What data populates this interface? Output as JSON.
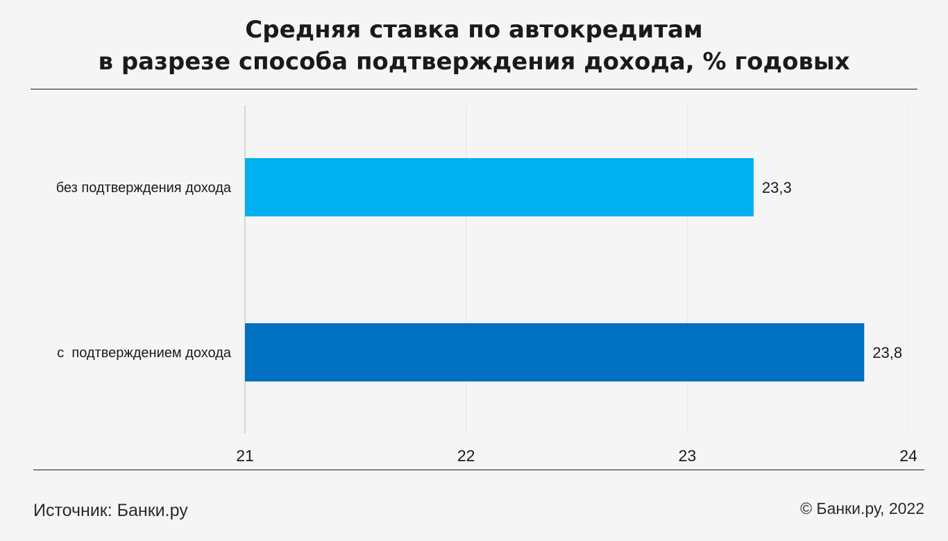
{
  "header": {
    "title_line1": "Средняя ставка по автокредитам",
    "title_line2": "в разрезе способа подтверждения дохода, % годовых"
  },
  "footer": {
    "source": "Источник: Банки.ру",
    "copyright": "© Банки.ру, 2022"
  },
  "chart_data": {
    "type": "bar",
    "orientation": "horizontal",
    "title": "Средняя ставка по автокредитам в разрезе способа подтверждения дохода, % годовых",
    "categories": [
      "без подтверждения дохода",
      "с  подтверждением дохода"
    ],
    "values": [
      23.3,
      23.8
    ],
    "value_labels": [
      "23,3",
      "23,8"
    ],
    "colors": [
      "#00b0ef",
      "#0071c1"
    ],
    "xlim": [
      21,
      24
    ],
    "xticks": [
      21,
      22,
      23,
      24
    ],
    "xtick_labels": [
      "21",
      "22",
      "23",
      "24"
    ],
    "xlabel": "",
    "ylabel": "",
    "grid": true,
    "legend": "none"
  }
}
